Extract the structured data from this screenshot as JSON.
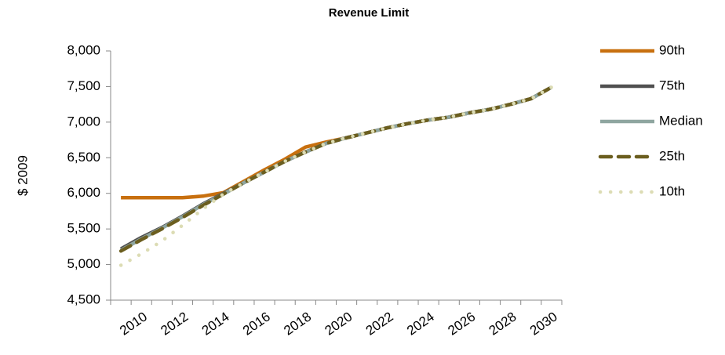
{
  "chart_data": {
    "type": "line",
    "title": "Revenue Limit",
    "y_label": "$ 2009",
    "categories": [
      null,
      "2010",
      null,
      "2012",
      null,
      "2014",
      null,
      "2016",
      null,
      "2018",
      null,
      "2020",
      null,
      "2022",
      null,
      "2024",
      null,
      "2026",
      null,
      "2028",
      null,
      "2030"
    ],
    "series": [
      {
        "name": "90th",
        "color": "#c8700f",
        "dash": "solid",
        "values": [
          5940,
          5940,
          5940,
          5940,
          5960,
          6010,
          6170,
          6330,
          6480,
          6650,
          6720,
          6780,
          6850,
          6920,
          6980,
          7030,
          7070,
          7130,
          7180,
          7250,
          7330,
          7490
        ]
      },
      {
        "name": "75th",
        "color": "#505050",
        "dash": "solid",
        "values": [
          5220,
          5380,
          5520,
          5680,
          5850,
          6000,
          6150,
          6300,
          6450,
          6580,
          6700,
          6780,
          6850,
          6920,
          6980,
          7030,
          7070,
          7130,
          7180,
          7250,
          7330,
          7490
        ]
      },
      {
        "name": "Median",
        "color": "#8fa6a0",
        "dash": "solid",
        "values": [
          5200,
          5360,
          5510,
          5670,
          5840,
          5990,
          6150,
          6300,
          6450,
          6580,
          6700,
          6780,
          6850,
          6920,
          6980,
          7030,
          7070,
          7130,
          7180,
          7250,
          7330,
          7490
        ]
      },
      {
        "name": "25th",
        "color": "#6b5e1f",
        "dash": "dashed",
        "values": [
          5190,
          5350,
          5500,
          5660,
          5830,
          5990,
          6150,
          6300,
          6450,
          6580,
          6700,
          6780,
          6850,
          6920,
          6980,
          7030,
          7070,
          7130,
          7180,
          7250,
          7330,
          7490
        ]
      },
      {
        "name": "10th",
        "color": "#dcdcb4",
        "dash": "dotted",
        "values": [
          4990,
          5150,
          5330,
          5550,
          5780,
          5990,
          6150,
          6300,
          6450,
          6580,
          6700,
          6780,
          6850,
          6920,
          6980,
          7030,
          7070,
          7130,
          7180,
          7250,
          7330,
          7490
        ]
      }
    ],
    "ylim": [
      4500,
      8000
    ],
    "yticks": [
      {
        "value": 4500,
        "label": "4,500"
      },
      {
        "value": 5000,
        "label": "5,000"
      },
      {
        "value": 5500,
        "label": "5,500"
      },
      {
        "value": 6000,
        "label": "6,000"
      },
      {
        "value": 6500,
        "label": "6,500"
      },
      {
        "value": 7000,
        "label": "7,000"
      },
      {
        "value": 7500,
        "label": "7,500"
      },
      {
        "value": 8000,
        "label": "8,000"
      }
    ],
    "grid": false,
    "legend": "right"
  }
}
